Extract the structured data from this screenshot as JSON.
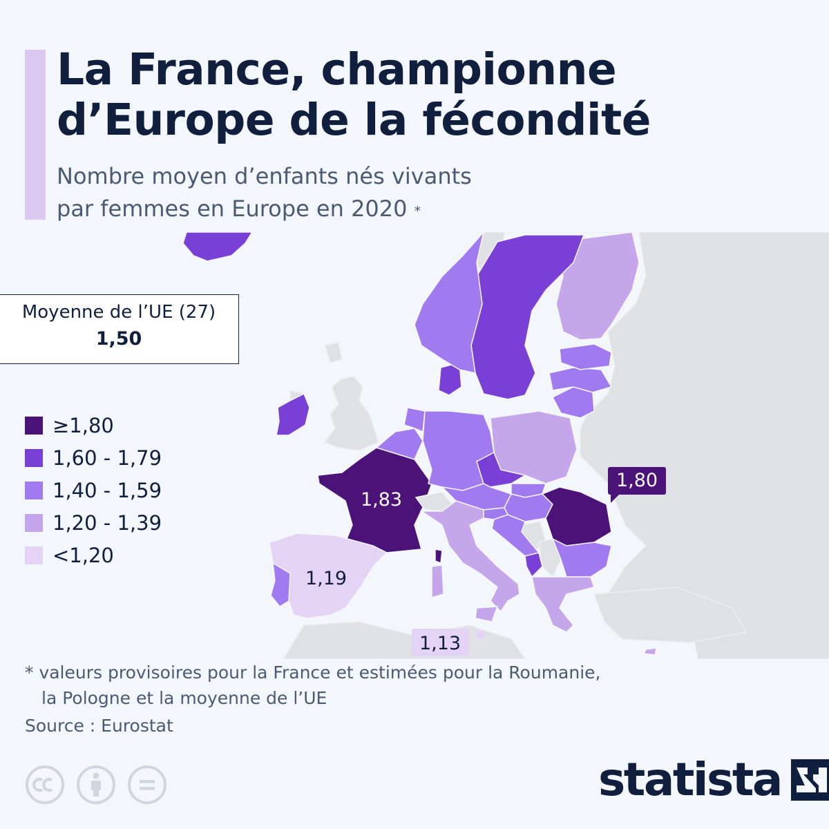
{
  "title": "La France, championne d’Europe de la fécondité",
  "subtitle_line1": "Nombre moyen d’enfants nés vivants",
  "subtitle_line2": "par femmes en Europe en 2020",
  "subtitle_mark": "*",
  "eu_average": {
    "label": "Moyenne de l’UE (27)",
    "value": "1,50"
  },
  "legend": [
    {
      "label": "≥1,80",
      "color": "#4b1278"
    },
    {
      "label": "1,60 - 1,79",
      "color": "#7a3fd4"
    },
    {
      "label": "1,40 - 1,59",
      "color": "#a17af0"
    },
    {
      "label": "1,20 - 1,39",
      "color": "#c6a6ea"
    },
    {
      "label": "<1,20",
      "color": "#e4d3f4"
    }
  ],
  "map_labels": [
    {
      "country": "France",
      "value": "1,83"
    },
    {
      "country": "Roumanie",
      "value": "1,80"
    },
    {
      "country": "Espagne",
      "value": "1,19"
    },
    {
      "country": "Malte",
      "value": "1,13"
    }
  ],
  "map_colors": {
    "land_non_eu": "#dfe1e5",
    "sea": "#f3f6fa",
    "cat_ge_180": "#4b1278",
    "cat_160_179": "#7a3fd4",
    "cat_140_159": "#a17af0",
    "cat_120_139": "#c6a6ea",
    "cat_lt_120": "#e4d3f4"
  },
  "footnote_line1": "* valeurs provisoires pour la France et estimées pour la Roumanie,",
  "footnote_line2": "la Pologne et la moyenne de l’UE",
  "source": "Source : Eurostat",
  "brand": "statista",
  "license_icons": [
    "cc-icon",
    "attribution-icon",
    "no-derivatives-icon"
  ]
}
